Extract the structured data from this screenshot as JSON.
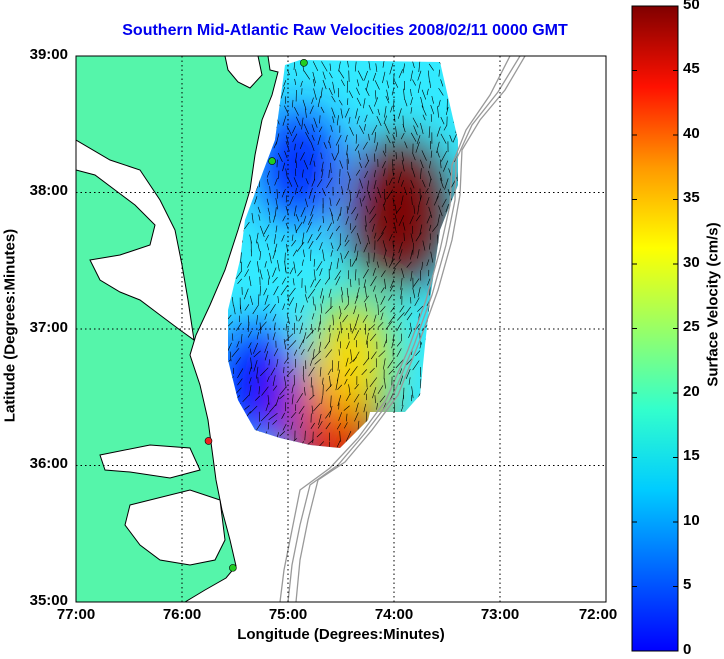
{
  "title": "Southern Mid-Atlantic Raw Velocities 2008/02/11 0000 GMT",
  "x_axis": {
    "label": "Longitude (Degrees:Minutes)",
    "ticks": [
      "77:00",
      "76:00",
      "75:00",
      "74:00",
      "73:00",
      "72:00"
    ],
    "range": [
      -77,
      -72
    ]
  },
  "y_axis": {
    "label": "Latitude (Degrees:Minutes)",
    "ticks": [
      "39:00",
      "38:00",
      "37:00",
      "36:00",
      "35:00"
    ],
    "range": [
      35,
      39
    ]
  },
  "colorbar": {
    "label": "Surface Velocity (cm/s)",
    "ticks": [
      "50",
      "45",
      "40",
      "35",
      "30",
      "25",
      "20",
      "15",
      "10",
      "5",
      "0"
    ],
    "range": [
      0,
      50
    ],
    "colormap": "jet"
  },
  "colors": {
    "land": "#55f5aa",
    "coast": "#000000",
    "bathymetry": "#999999",
    "grid": "#000000",
    "site_active": "#22cc22",
    "site_inactive": "#ee2222",
    "title": "#0000ee"
  },
  "grid": true,
  "sites": [
    {
      "lon": -74.85,
      "lat": 38.95,
      "status": "active"
    },
    {
      "lon": -75.15,
      "lat": 38.23,
      "status": "active"
    },
    {
      "lon": -75.75,
      "lat": 36.18,
      "status": "inactive"
    },
    {
      "lon": -75.52,
      "lat": 35.25,
      "status": "active"
    }
  ],
  "field_hotspots": [
    {
      "lon": -73.95,
      "lat": 37.85,
      "speed": 50
    },
    {
      "lon": -74.55,
      "lat": 36.35,
      "speed": 45
    },
    {
      "lon": -74.4,
      "lat": 36.8,
      "speed": 33
    },
    {
      "lon": -74.9,
      "lat": 38.2,
      "speed": 8
    },
    {
      "lon": -75.3,
      "lat": 36.6,
      "speed": 7
    }
  ]
}
